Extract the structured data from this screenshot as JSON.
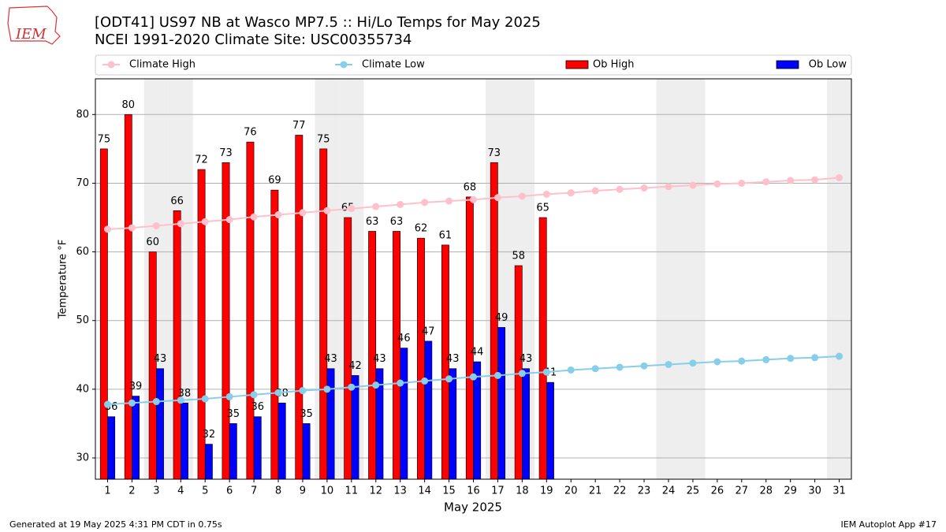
{
  "chart_data": {
    "type": "bar",
    "logo_text": "IEM",
    "title": "[ODT41] US97 NB at Wasco MP7.5  :: Hi/Lo Temps for May 2025",
    "subtitle": "NCEI 1991-2020 Climate Site: USC00355734",
    "x_label": "May 2025",
    "y_label": "Temperature °F",
    "footer_left": "Generated at 19 May 2025 4:31 PM CDT in 0.75s",
    "footer_right": "IEM Autoplot App #17",
    "categories": [
      "1",
      "2",
      "3",
      "4",
      "5",
      "6",
      "7",
      "8",
      "9",
      "10",
      "11",
      "12",
      "13",
      "14",
      "15",
      "16",
      "17",
      "18",
      "19",
      "20",
      "21",
      "22",
      "23",
      "24",
      "25",
      "26",
      "27",
      "28",
      "29",
      "30",
      "31"
    ],
    "ylim": [
      26.9,
      85.2
    ],
    "yticks": [
      30,
      40,
      50,
      60,
      70,
      80
    ],
    "grid": true,
    "series": [
      {
        "name": "Climate High",
        "type": "line",
        "color": "#ffc0cb",
        "values": [
          63.3,
          63.5,
          63.8,
          64.1,
          64.4,
          64.7,
          65.1,
          65.4,
          65.7,
          66.0,
          66.3,
          66.6,
          66.9,
          67.2,
          67.4,
          67.6,
          67.9,
          68.1,
          68.4,
          68.6,
          68.9,
          69.1,
          69.3,
          69.5,
          69.7,
          69.9,
          70.0,
          70.2,
          70.4,
          70.5,
          70.8
        ]
      },
      {
        "name": "Climate Low",
        "type": "line",
        "color": "#87ceeb",
        "values": [
          37.8,
          38.0,
          38.2,
          38.4,
          38.6,
          38.9,
          39.2,
          39.5,
          39.8,
          40.0,
          40.3,
          40.6,
          40.9,
          41.2,
          41.5,
          41.8,
          42.0,
          42.3,
          42.5,
          42.8,
          43.0,
          43.2,
          43.4,
          43.6,
          43.8,
          44.0,
          44.1,
          44.3,
          44.5,
          44.6,
          44.8
        ]
      },
      {
        "name": "Ob High",
        "type": "bar",
        "color": "#ff0000",
        "values": [
          75,
          80,
          60,
          66,
          72,
          73,
          76,
          69,
          77,
          75,
          65,
          63,
          63,
          62,
          61,
          68,
          73,
          58,
          65,
          null,
          null,
          null,
          null,
          null,
          null,
          null,
          null,
          null,
          null,
          null,
          null
        ]
      },
      {
        "name": "Ob Low",
        "type": "bar",
        "color": "#0000ff",
        "values": [
          36,
          39,
          43,
          38,
          32,
          35,
          36,
          38,
          35,
          43,
          42,
          43,
          46,
          47,
          43,
          44,
          49,
          43,
          41,
          null,
          null,
          null,
          null,
          null,
          null,
          null,
          null,
          null,
          null,
          null,
          null
        ]
      }
    ]
  }
}
